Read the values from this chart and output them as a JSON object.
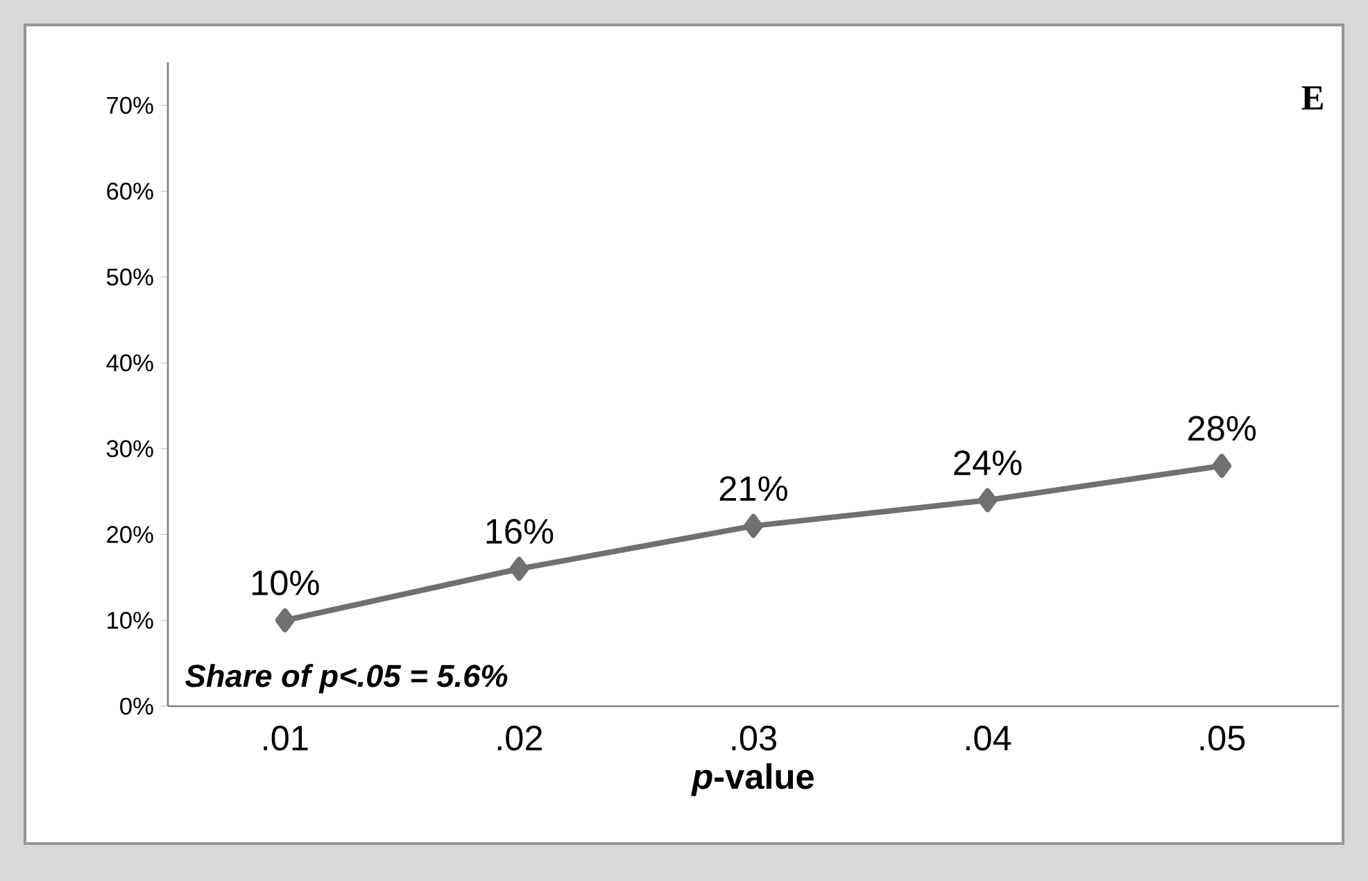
{
  "chart_data": {
    "type": "line",
    "xlabel": "*p*-value",
    "categories": [
      ".01",
      ".02",
      ".03",
      ".04",
      ".05"
    ],
    "series": [
      {
        "color": "#707070",
        "values": [
          10,
          16,
          21,
          24,
          28
        ],
        "value_labels": [
          "10%",
          "16%",
          "21%",
          "24%",
          "28%"
        ]
      }
    ],
    "ylim": [
      0,
      75
    ],
    "yticks": [
      {
        "value": 0,
        "label": "0%"
      },
      {
        "value": 10,
        "label": "10%"
      },
      {
        "value": 20,
        "label": "20%"
      },
      {
        "value": 30,
        "label": "30%"
      },
      {
        "value": 40,
        "label": "40%"
      },
      {
        "value": 50,
        "label": "50%"
      },
      {
        "value": 60,
        "label": "60%"
      },
      {
        "value": 70,
        "label": "70%"
      }
    ],
    "marker": "diamond",
    "line_style": "solid",
    "grid": false,
    "annotations": [
      "E",
      "Share of p<.05 = 5.6%"
    ]
  }
}
